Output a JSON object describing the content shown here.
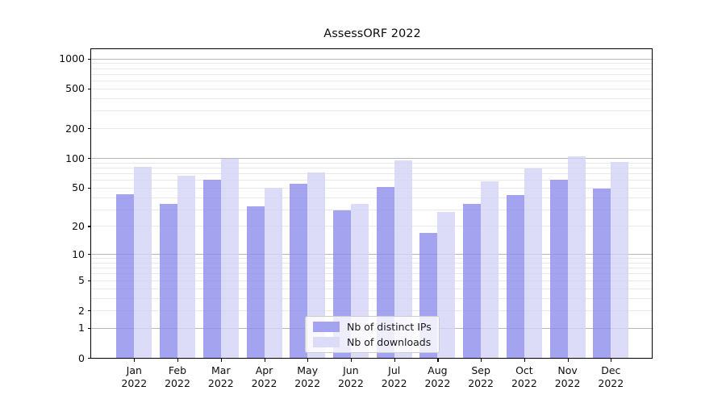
{
  "chart_data": {
    "type": "bar",
    "title": "AssessORF 2022",
    "categories": [
      "Jan",
      "Feb",
      "Mar",
      "Apr",
      "May",
      "Jun",
      "Jul",
      "Aug",
      "Sep",
      "Oct",
      "Nov",
      "Dec"
    ],
    "category_year": "2022",
    "series": [
      {
        "name": "Nb of distinct IPs",
        "color": "#a3a3ef",
        "values": [
          43,
          34,
          60,
          32,
          55,
          29,
          51,
          17,
          34,
          42,
          60,
          49
        ]
      },
      {
        "name": "Nb of downloads",
        "color": "#dcdcf8",
        "values": [
          81,
          66,
          98,
          50,
          71,
          34,
          95,
          28,
          58,
          78,
          103,
          91
        ]
      }
    ],
    "y_axis": {
      "scale": "log1p",
      "tick_values": [
        0,
        1,
        2,
        5,
        10,
        20,
        50,
        100,
        200,
        500,
        1000
      ],
      "ylim": [
        0,
        1100
      ]
    },
    "grid": {
      "major_at_decades": [
        1,
        10,
        100,
        1000
      ],
      "minor_log_lines": true
    },
    "legend_position": "bottom-center"
  }
}
